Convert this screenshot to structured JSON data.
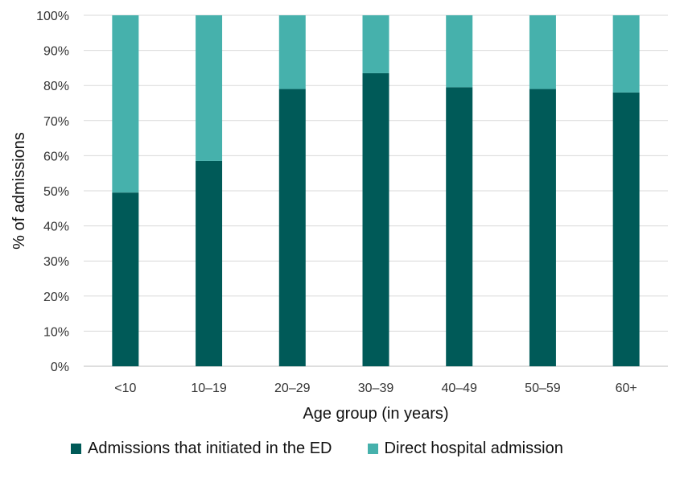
{
  "chart_data": {
    "type": "bar",
    "stacked": true,
    "title": "",
    "xlabel": "Age group (in years)",
    "ylabel": "% of admissions",
    "ylim": [
      0,
      100
    ],
    "yticks": [
      "0%",
      "10%",
      "20%",
      "30%",
      "40%",
      "50%",
      "60%",
      "70%",
      "80%",
      "90%",
      "100%"
    ],
    "categories": [
      "<10",
      "10–19",
      "20–29",
      "30–39",
      "40–49",
      "50–59",
      "60+"
    ],
    "series": [
      {
        "name": "Admissions that initiated in the ED",
        "color": "#005a58",
        "values": [
          49.5,
          58.5,
          79,
          83.5,
          79.5,
          79,
          78
        ]
      },
      {
        "name": "Direct hospital admission",
        "color": "#46b1ac",
        "values": [
          50.5,
          41.5,
          21,
          16.5,
          20.5,
          21,
          22
        ]
      }
    ],
    "grid": true,
    "legend_position": "bottom"
  }
}
